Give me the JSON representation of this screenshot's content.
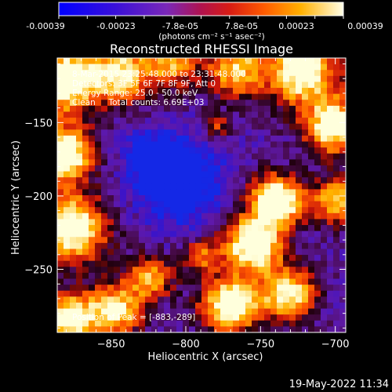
{
  "colorbar": {
    "ticks": [
      "-0.00039",
      "-0.00023",
      "-7.8e-05",
      "7.8e-05",
      "0.00023",
      "0.00039"
    ],
    "units": "(photons cm⁻² s⁻¹ asec⁻²)"
  },
  "plot": {
    "title": "Reconstructed RHESSI Image",
    "annotations": [
      "8-Mar-2015 23:25:48.000 to 23:31:48.000",
      "Detectors: 3F 5F 6F 7F 8F 9F, Att 0",
      "Energy Range: 25.0 - 50.0 keV",
      "Clean     Total counts: 6.69E+03"
    ],
    "peak_label": "Position of Peak = [-883,-289]"
  },
  "axes": {
    "x_label": "Heliocentric X (arcsec)",
    "y_label": "Heliocentric Y (arcsec)",
    "x_ticks": [
      {
        "value": -850,
        "label": "−850"
      },
      {
        "value": -800,
        "label": "−800"
      },
      {
        "value": -750,
        "label": "−750"
      },
      {
        "value": -700,
        "label": "−700"
      }
    ],
    "y_ticks": [
      {
        "value": -150,
        "label": "−150"
      },
      {
        "value": -200,
        "label": "−200"
      },
      {
        "value": -250,
        "label": "−250"
      }
    ],
    "x_range": [
      -886,
      -693
    ],
    "y_range": [
      -293,
      -106
    ]
  },
  "footer": {
    "timestamp": "19-May-2022 11:34"
  },
  "colors": {
    "background": "#000000",
    "foreground": "#ffffff"
  }
}
